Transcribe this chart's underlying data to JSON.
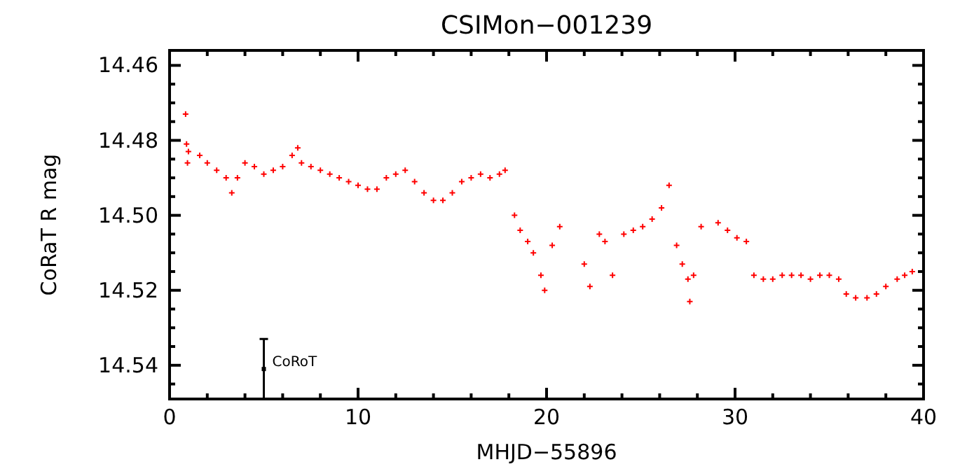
{
  "chart_data": {
    "type": "scatter",
    "title": "CSIMon−001239",
    "xlabel": "MHJD−55896",
    "ylabel": "CoRaT R mag",
    "xlim": [
      0,
      40
    ],
    "ylim": [
      14.549,
      14.456
    ],
    "xticks": [
      0,
      {
        "value": 2,
        "label": null
      },
      {
        "value": 4,
        "label": null
      },
      {
        "value": 6,
        "label": null
      },
      {
        "value": 8,
        "label": null
      },
      10,
      {
        "value": 12,
        "label": null
      },
      {
        "value": 14,
        "label": null
      },
      {
        "value": 16,
        "label": null
      },
      {
        "value": 18,
        "label": null
      },
      20,
      {
        "value": 22,
        "label": null
      },
      {
        "value": 24,
        "label": null
      },
      {
        "value": 26,
        "label": null
      },
      {
        "value": 28,
        "label": null
      },
      30,
      {
        "value": 32,
        "label": null
      },
      {
        "value": 34,
        "label": null
      },
      {
        "value": 36,
        "label": null
      },
      {
        "value": 38,
        "label": null
      },
      40
    ],
    "yticks": [
      {
        "value": 14.46,
        "label": "14.46"
      },
      {
        "value": 14.465,
        "label": null
      },
      {
        "value": 14.47,
        "label": null
      },
      {
        "value": 14.475,
        "label": null
      },
      {
        "value": 14.48,
        "label": "14.48"
      },
      {
        "value": 14.485,
        "label": null
      },
      {
        "value": 14.49,
        "label": null
      },
      {
        "value": 14.495,
        "label": null
      },
      {
        "value": 14.5,
        "label": "14.50"
      },
      {
        "value": 14.505,
        "label": null
      },
      {
        "value": 14.51,
        "label": null
      },
      {
        "value": 14.515,
        "label": null
      },
      {
        "value": 14.52,
        "label": "14.52"
      },
      {
        "value": 14.525,
        "label": null
      },
      {
        "value": 14.53,
        "label": null
      },
      {
        "value": 14.535,
        "label": null
      },
      {
        "value": 14.54,
        "label": "14.54"
      },
      {
        "value": 14.545,
        "label": null
      }
    ],
    "grid": false,
    "series": [
      {
        "color": "#ff0000",
        "marker": "cross",
        "x": [
          0.85,
          0.9,
          0.95,
          1.0,
          1.6,
          2.0,
          2.5,
          3.0,
          3.3,
          3.6,
          4.0,
          4.5,
          5.0,
          5.5,
          6.0,
          6.5,
          6.8,
          7.0,
          7.5,
          8.0,
          8.5,
          9.0,
          9.5,
          10.0,
          10.5,
          11.0,
          11.5,
          12.0,
          12.5,
          13.0,
          13.5,
          14.0,
          14.5,
          15.0,
          15.5,
          16.0,
          16.5,
          17.0,
          17.5,
          17.8,
          18.3,
          18.6,
          19.0,
          19.3,
          19.7,
          19.9,
          20.3,
          20.7,
          22.0,
          22.3,
          22.8,
          23.1,
          23.5,
          24.1,
          24.6,
          25.1,
          25.6,
          26.1,
          26.5,
          26.9,
          27.2,
          27.5,
          27.6,
          27.8,
          28.2,
          29.1,
          29.6,
          30.1,
          30.6,
          31.0,
          31.5,
          32.0,
          32.5,
          33.0,
          33.5,
          34.0,
          34.5,
          35.0,
          35.5,
          35.9,
          36.4,
          37.0,
          37.5,
          38.0,
          38.6,
          39.0,
          39.4
        ],
        "values": [
          14.473,
          14.481,
          14.486,
          14.483,
          14.484,
          14.486,
          14.488,
          14.49,
          14.494,
          14.49,
          14.486,
          14.487,
          14.489,
          14.488,
          14.487,
          14.484,
          14.482,
          14.486,
          14.487,
          14.488,
          14.489,
          14.49,
          14.491,
          14.492,
          14.493,
          14.493,
          14.49,
          14.489,
          14.488,
          14.491,
          14.494,
          14.496,
          14.496,
          14.494,
          14.491,
          14.49,
          14.489,
          14.49,
          14.489,
          14.488,
          14.5,
          14.504,
          14.507,
          14.51,
          14.516,
          14.52,
          14.508,
          14.503,
          14.513,
          14.519,
          14.505,
          14.507,
          14.516,
          14.505,
          14.504,
          14.503,
          14.501,
          14.498,
          14.492,
          14.508,
          14.513,
          14.517,
          14.523,
          14.516,
          14.503,
          14.502,
          14.504,
          14.506,
          14.507,
          14.516,
          14.517,
          14.517,
          14.516,
          14.516,
          14.516,
          14.517,
          14.516,
          14.516,
          14.517,
          14.521,
          14.522,
          14.522,
          14.521,
          14.519,
          14.517,
          14.516,
          14.515
        ]
      },
      {
        "color": "#000000",
        "marker": "square",
        "x": [
          5
        ],
        "values": [
          14.541
        ],
        "errors": [
          0.008
        ]
      }
    ],
    "annotations": [
      {
        "text": "CoRoT",
        "x": 5,
        "y": 14.541
      }
    ]
  }
}
